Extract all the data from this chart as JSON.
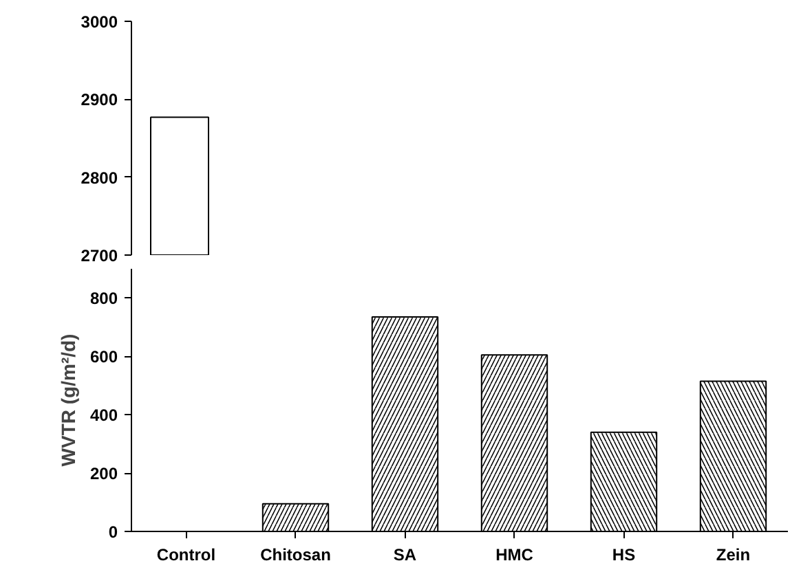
{
  "chart_data": [
    {
      "type": "bar",
      "categories": [
        null
      ],
      "values": [
        2877
      ],
      "colors": [
        "#ffffff"
      ],
      "ylim": [
        2700,
        3000
      ],
      "yticks": [
        2700,
        2800,
        2900,
        3000
      ],
      "tick_labels": "y",
      "grid": false
    },
    {
      "type": "bar",
      "categories": [
        "Control",
        "Chitosan",
        "SA",
        "HMC",
        "HS",
        "Zein"
      ],
      "values": [
        null,
        95,
        735,
        605,
        340,
        515
      ],
      "colors": [
        "#ffffff",
        "#ffffff",
        "#ffffff",
        "#ffffff",
        "#ffffff",
        "#ffffff"
      ],
      "ylim": [
        0,
        900
      ],
      "yticks": [
        0,
        200,
        400,
        600,
        800
      ],
      "ylabel": "WVTR (g/m²/d)",
      "grid": false
    }
  ]
}
